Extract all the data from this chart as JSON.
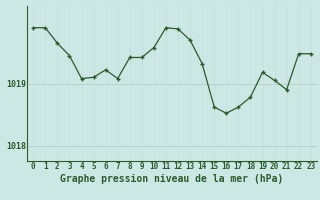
{
  "x": [
    0,
    1,
    2,
    3,
    4,
    5,
    6,
    7,
    8,
    9,
    10,
    11,
    12,
    13,
    14,
    15,
    16,
    17,
    18,
    19,
    20,
    21,
    22,
    23
  ],
  "y": [
    1019.9,
    1019.9,
    1019.65,
    1019.45,
    1019.08,
    1019.1,
    1019.22,
    1019.08,
    1019.42,
    1019.42,
    1019.58,
    1019.9,
    1019.88,
    1019.7,
    1019.32,
    1018.62,
    1018.52,
    1018.62,
    1018.78,
    1019.18,
    1019.05,
    1018.9,
    1019.48,
    1019.48
  ],
  "bg_color": "#cce8e4",
  "line_color": "#2d5a2d",
  "grid_h_color": "#b8d0cc",
  "grid_v_color": "#c8dcda",
  "xlabel": "Graphe pression niveau de la mer (hPa)",
  "ytick_labels": [
    "1018",
    "1019"
  ],
  "ytick_values": [
    1018.0,
    1019.0
  ],
  "ylim": [
    1017.75,
    1020.25
  ],
  "xlim": [
    -0.5,
    23.5
  ],
  "xlabel_fontsize": 7,
  "tick_fontsize": 6,
  "line_width": 0.9,
  "marker_size": 3.5
}
